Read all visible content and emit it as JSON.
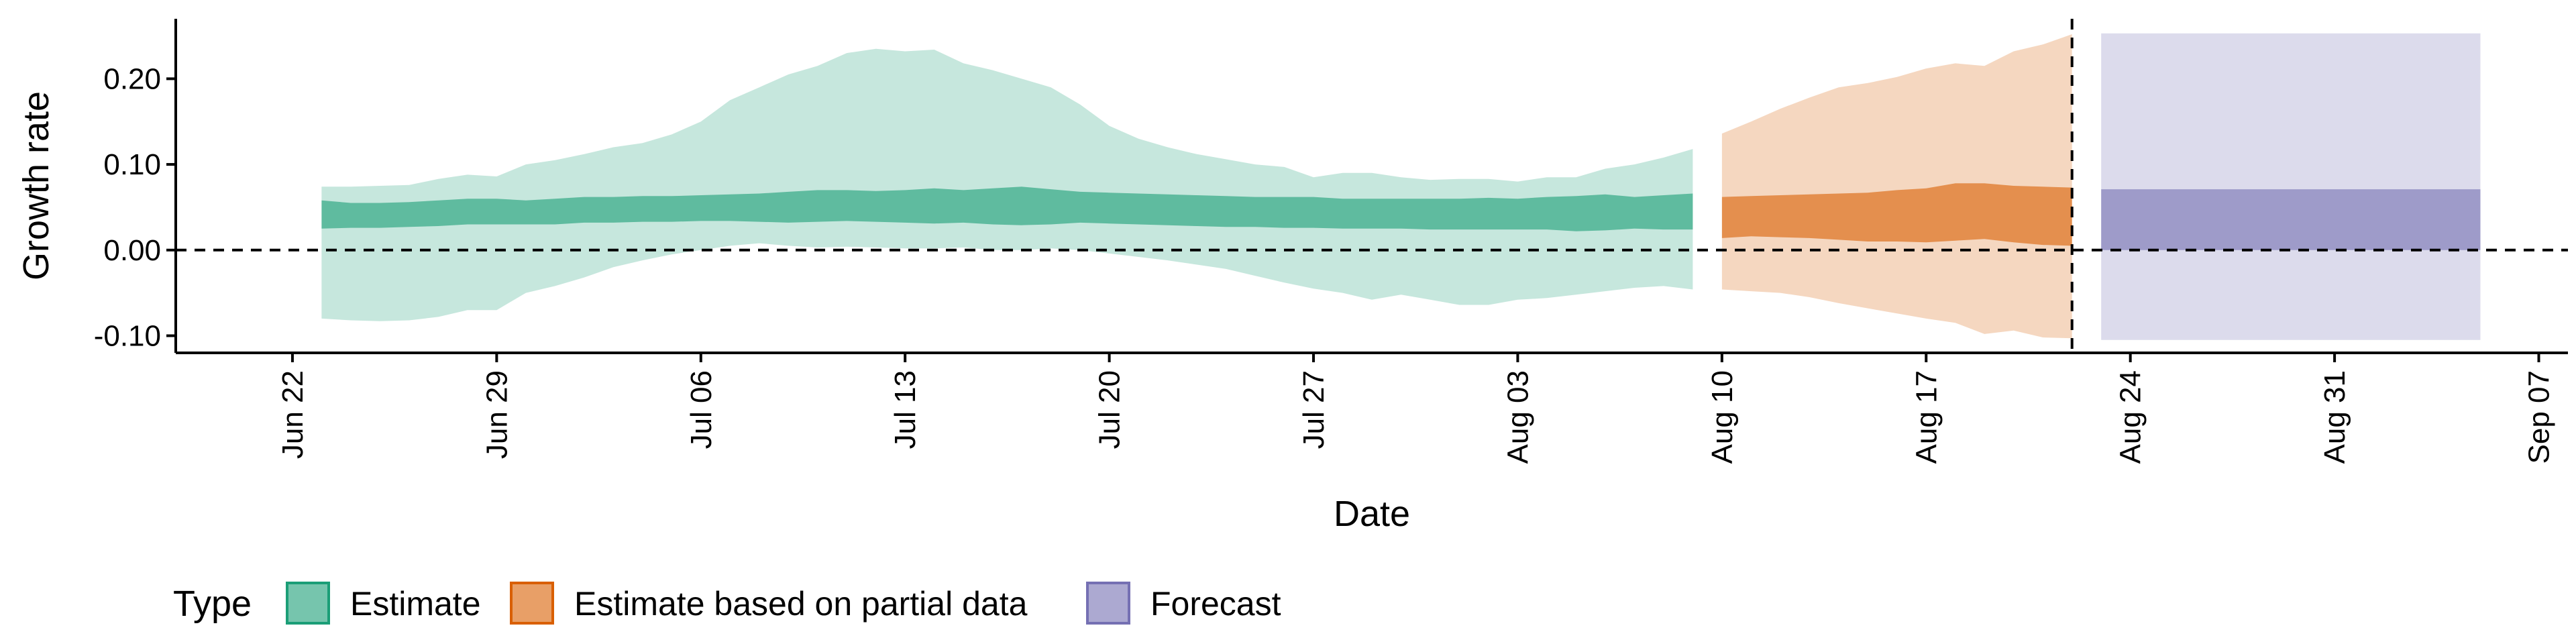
{
  "chart_data": {
    "type": "area",
    "title": "",
    "xlabel": "Date",
    "ylabel": "Growth rate",
    "x_ticks": [
      "Jun 22",
      "Jun 29",
      "Jul 06",
      "Jul 13",
      "Jul 20",
      "Jul 27",
      "Aug 03",
      "Aug 10",
      "Aug 17",
      "Aug 24",
      "Aug 31",
      "Sep 07"
    ],
    "y_ticks": [
      "-0.10",
      "0.00",
      "0.10",
      "0.20"
    ],
    "xlim": [
      "2020-06-18",
      "2020-09-08"
    ],
    "ylim": [
      -0.12,
      0.27
    ],
    "reference_hline": 0.0,
    "reference_vline": "2020-08-22",
    "grid": false,
    "legend_title": "Type",
    "legend_position": "bottom",
    "series": [
      {
        "name": "Estimate",
        "color": "#1b9e77",
        "x": [
          "2020-06-23",
          "2020-06-24",
          "2020-06-25",
          "2020-06-26",
          "2020-06-27",
          "2020-06-28",
          "2020-06-29",
          "2020-06-30",
          "2020-07-01",
          "2020-07-02",
          "2020-07-03",
          "2020-07-04",
          "2020-07-05",
          "2020-07-06",
          "2020-07-07",
          "2020-07-08",
          "2020-07-09",
          "2020-07-10",
          "2020-07-11",
          "2020-07-12",
          "2020-07-13",
          "2020-07-14",
          "2020-07-15",
          "2020-07-16",
          "2020-07-17",
          "2020-07-18",
          "2020-07-19",
          "2020-07-20",
          "2020-07-21",
          "2020-07-22",
          "2020-07-23",
          "2020-07-24",
          "2020-07-25",
          "2020-07-26",
          "2020-07-27",
          "2020-07-28",
          "2020-07-29",
          "2020-07-30",
          "2020-07-31",
          "2020-08-01",
          "2020-08-02",
          "2020-08-03",
          "2020-08-04",
          "2020-08-05",
          "2020-08-06",
          "2020-08-07",
          "2020-08-08",
          "2020-08-09"
        ],
        "lower90": [
          -0.08,
          -0.082,
          -0.083,
          -0.082,
          -0.078,
          -0.07,
          -0.07,
          -0.05,
          -0.042,
          -0.032,
          -0.02,
          -0.012,
          -0.005,
          0.0,
          0.005,
          0.008,
          0.005,
          0.003,
          0.004,
          0.003,
          0.002,
          0.002,
          0.003,
          0.0,
          0.0,
          0.002,
          0.0,
          -0.004,
          -0.008,
          -0.012,
          -0.017,
          -0.022,
          -0.03,
          -0.038,
          -0.045,
          -0.05,
          -0.058,
          -0.052,
          -0.058,
          -0.064,
          -0.064,
          -0.058,
          -0.056,
          -0.052,
          -0.048,
          -0.044,
          -0.042,
          -0.046
        ],
        "upper90": [
          0.074,
          0.074,
          0.075,
          0.076,
          0.083,
          0.088,
          0.086,
          0.1,
          0.105,
          0.112,
          0.12,
          0.125,
          0.135,
          0.15,
          0.175,
          0.19,
          0.205,
          0.215,
          0.23,
          0.235,
          0.232,
          0.234,
          0.218,
          0.21,
          0.2,
          0.19,
          0.17,
          0.145,
          0.13,
          0.12,
          0.112,
          0.106,
          0.1,
          0.097,
          0.085,
          0.09,
          0.09,
          0.085,
          0.082,
          0.083,
          0.083,
          0.08,
          0.085,
          0.085,
          0.095,
          0.1,
          0.108,
          0.118
        ],
        "lower50": [
          0.025,
          0.026,
          0.026,
          0.027,
          0.028,
          0.03,
          0.03,
          0.03,
          0.03,
          0.032,
          0.032,
          0.033,
          0.033,
          0.034,
          0.034,
          0.033,
          0.032,
          0.033,
          0.034,
          0.033,
          0.032,
          0.031,
          0.032,
          0.03,
          0.029,
          0.03,
          0.032,
          0.031,
          0.03,
          0.029,
          0.028,
          0.027,
          0.027,
          0.026,
          0.026,
          0.025,
          0.025,
          0.025,
          0.024,
          0.024,
          0.024,
          0.024,
          0.024,
          0.022,
          0.023,
          0.025,
          0.024,
          0.024
        ],
        "upper50": [
          0.058,
          0.055,
          0.055,
          0.056,
          0.058,
          0.06,
          0.06,
          0.058,
          0.06,
          0.062,
          0.062,
          0.063,
          0.063,
          0.064,
          0.065,
          0.066,
          0.068,
          0.07,
          0.07,
          0.069,
          0.07,
          0.072,
          0.07,
          0.072,
          0.074,
          0.071,
          0.068,
          0.067,
          0.066,
          0.065,
          0.064,
          0.063,
          0.062,
          0.062,
          0.062,
          0.06,
          0.06,
          0.06,
          0.06,
          0.06,
          0.061,
          0.06,
          0.062,
          0.063,
          0.065,
          0.062,
          0.064,
          0.066
        ]
      },
      {
        "name": "Estimate based on partial data",
        "color": "#d95f02",
        "x": [
          "2020-08-10",
          "2020-08-11",
          "2020-08-12",
          "2020-08-13",
          "2020-08-14",
          "2020-08-15",
          "2020-08-16",
          "2020-08-17",
          "2020-08-18",
          "2020-08-19",
          "2020-08-20",
          "2020-08-21",
          "2020-08-22"
        ],
        "lower90": [
          -0.046,
          -0.048,
          -0.05,
          -0.055,
          -0.062,
          -0.068,
          -0.074,
          -0.08,
          -0.085,
          -0.098,
          -0.094,
          -0.102,
          -0.103
        ],
        "upper90": [
          0.136,
          0.15,
          0.165,
          0.178,
          0.19,
          0.195,
          0.202,
          0.212,
          0.218,
          0.215,
          0.232,
          0.24,
          0.252
        ],
        "lower50": [
          0.014,
          0.016,
          0.015,
          0.014,
          0.012,
          0.01,
          0.01,
          0.009,
          0.011,
          0.013,
          0.009,
          0.006,
          0.005
        ],
        "upper50": [
          0.062,
          0.063,
          0.064,
          0.065,
          0.066,
          0.067,
          0.07,
          0.072,
          0.078,
          0.078,
          0.075,
          0.074,
          0.073
        ]
      },
      {
        "name": "Forecast",
        "color": "#7570b3",
        "x": [
          "2020-08-23",
          "2020-09-05"
        ],
        "lower90": [
          -0.105,
          -0.105
        ],
        "upper90": [
          0.253,
          0.253
        ],
        "lower50": [
          0.0,
          0.0
        ],
        "upper50": [
          0.071,
          0.071
        ]
      }
    ]
  }
}
